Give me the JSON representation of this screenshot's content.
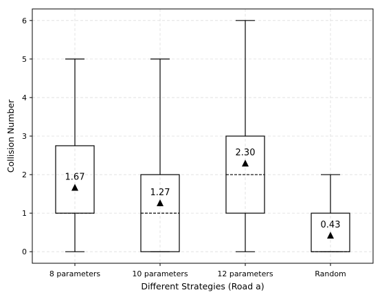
{
  "chart_data": {
    "type": "box",
    "xlabel": "Different Strategies (Road a)",
    "ylabel": "Collision Number",
    "ylim": [
      -0.3,
      6.3
    ],
    "yticks": [
      0,
      1,
      2,
      3,
      4,
      5,
      6
    ],
    "grid": true,
    "categories": [
      "8 parameters",
      "10 parameters",
      "12 parameters",
      "Random"
    ],
    "boxes": [
      {
        "whisker_low": 0,
        "q1": 1,
        "median": 1,
        "q3": 2.75,
        "whisker_high": 5,
        "mean": 1.67,
        "mean_label": "1.67"
      },
      {
        "whisker_low": 0,
        "q1": 0,
        "median": 1,
        "q3": 2,
        "whisker_high": 5,
        "mean": 1.27,
        "mean_label": "1.27"
      },
      {
        "whisker_low": 0,
        "q1": 1,
        "median": 2,
        "q3": 3,
        "whisker_high": 6,
        "mean": 2.3,
        "mean_label": "2.30"
      },
      {
        "whisker_low": 0,
        "q1": 0,
        "median": 0,
        "q3": 1,
        "whisker_high": 2,
        "mean": 0.43,
        "mean_label": "0.43"
      }
    ],
    "median_style": "dashed",
    "mean_marker": "triangle"
  }
}
